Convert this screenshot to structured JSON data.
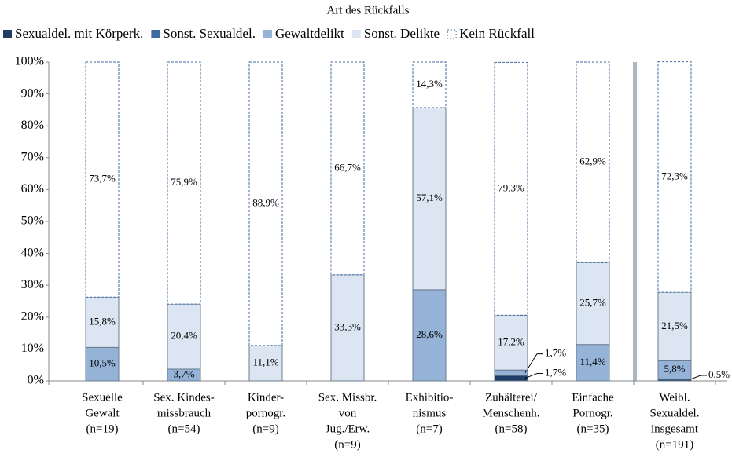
{
  "chart_data": {
    "type": "stacked_bar",
    "legend_title": "Art des Rückfalls",
    "categories": [
      [
        "Sexuelle",
        "Gewalt",
        "(n=19)"
      ],
      [
        "Sex. Kindes-",
        "missbrauch",
        "(n=54)"
      ],
      [
        "Kinder-",
        "pornogr.",
        "(n=9)"
      ],
      [
        "Sex. Missbr.",
        "von",
        "Jug./Erw.",
        "(n=9)"
      ],
      [
        "Exhibitio-",
        "nismus",
        "(n=7)"
      ],
      [
        "Zuhälterei/",
        "Menschenh.",
        "(n=58)"
      ],
      [
        "Einfache",
        "Pornogr.",
        "(n=35)"
      ],
      [
        "Weibl.",
        "Sexualdel.",
        "insgesamt",
        "(n=191)"
      ]
    ],
    "series": [
      {
        "name": "Sexualdel. mit Körperk.",
        "color": "#1f3d66",
        "values": [
          0,
          0,
          0,
          0,
          0,
          1.7,
          0,
          0.5
        ],
        "value_labels": [
          null,
          null,
          null,
          null,
          null,
          "1,7%",
          null,
          "0,5%"
        ]
      },
      {
        "name": "Sonst. Sexualdel.",
        "color": "#3f6aa3",
        "values": [
          0,
          0,
          0,
          0,
          0,
          0,
          0,
          0
        ],
        "value_labels": [
          null,
          null,
          null,
          null,
          null,
          null,
          null,
          null
        ]
      },
      {
        "name": "Gewaltdelikt",
        "color": "#95b3d7",
        "values": [
          10.5,
          3.7,
          0,
          0,
          28.6,
          1.7,
          11.4,
          5.8
        ],
        "value_labels": [
          "10,5%",
          "3,7%",
          null,
          null,
          "28,6%",
          "1,7%",
          "11,4%",
          "5,8%"
        ]
      },
      {
        "name": "Sonst. Delikte",
        "color": "#dce6f2",
        "values": [
          15.8,
          20.4,
          11.1,
          33.3,
          57.1,
          17.2,
          25.7,
          21.5
        ],
        "value_labels": [
          "15,8%",
          "20,4%",
          "11,1%",
          "33,3%",
          "57,1%",
          "17,2%",
          "25,7%",
          "21,5%"
        ]
      },
      {
        "name": "Kein Rückfall",
        "color": "#ffffff",
        "dashed": true,
        "values": [
          73.7,
          75.9,
          88.9,
          66.7,
          14.3,
          79.3,
          62.9,
          72.3
        ],
        "value_labels": [
          "73,7%",
          "75,9%",
          "88,9%",
          "66,7%",
          "14,3%",
          "79,3%",
          "62,9%",
          "72,3%"
        ]
      }
    ],
    "ylim": [
      0,
      100
    ],
    "yticks": [
      {
        "value": 0,
        "label": "0%"
      },
      {
        "value": 10,
        "label": "10%"
      },
      {
        "value": 20,
        "label": "20%"
      },
      {
        "value": 30,
        "label": "30%"
      },
      {
        "value": 40,
        "label": "40%"
      },
      {
        "value": 50,
        "label": "50%"
      },
      {
        "value": 60,
        "label": "60%"
      },
      {
        "value": 70,
        "label": "70%"
      },
      {
        "value": 80,
        "label": "80%"
      },
      {
        "value": 90,
        "label": "90%"
      },
      {
        "value": 100,
        "label": "100%"
      }
    ],
    "grid": false
  }
}
